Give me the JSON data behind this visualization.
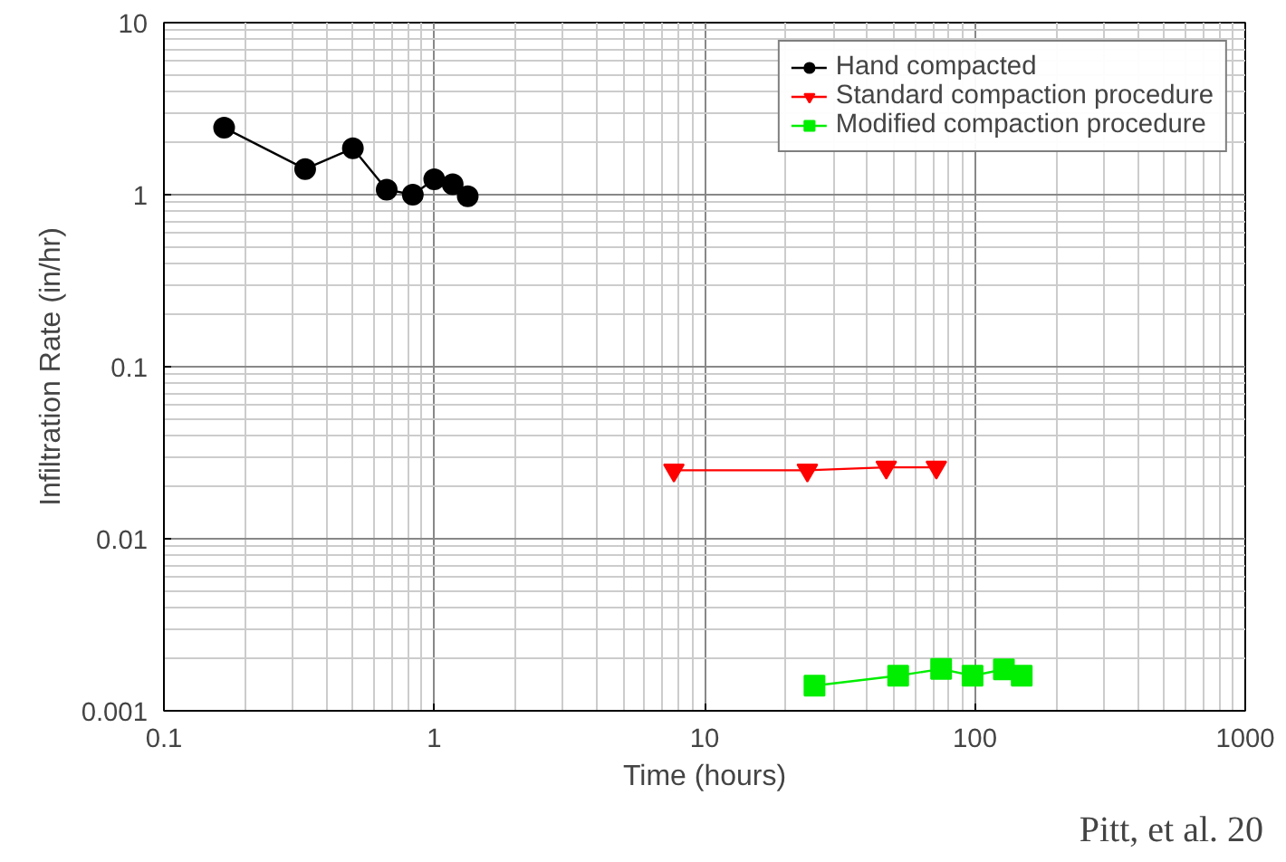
{
  "chart_data": {
    "type": "line",
    "xlabel": "Time (hours)",
    "ylabel": "Infiltration Rate (in/hr)",
    "log": "xy",
    "xlim": [
      0.1,
      1000
    ],
    "ylim": [
      0.001,
      10
    ],
    "xticks": [
      0.1,
      1,
      10,
      100,
      1000
    ],
    "yticks": [
      0.001,
      0.01,
      0.1,
      1,
      10
    ],
    "grid": true,
    "legend": "top right",
    "annotations": [
      "Pitt, et al. 20"
    ],
    "series": [
      {
        "name": "Hand compacted",
        "color": "#000000",
        "marker": "circle",
        "x": [
          0.167,
          0.333,
          0.5,
          0.667,
          0.833,
          1.0,
          1.17,
          1.33
        ],
        "values": [
          2.45,
          1.41,
          1.86,
          1.07,
          1.0,
          1.23,
          1.15,
          0.98
        ]
      },
      {
        "name": "Standard compaction procedure",
        "color": "#ff0000",
        "marker": "triangle",
        "x": [
          7.7,
          24,
          47,
          72
        ],
        "values": [
          0.025,
          0.025,
          0.026,
          0.026
        ]
      },
      {
        "name": "Modified compaction procedure",
        "color": "#00ee00",
        "marker": "square",
        "x": [
          25.5,
          52,
          75,
          98,
          128,
          149
        ],
        "values": [
          0.0014,
          0.0016,
          0.00175,
          0.0016,
          0.00174,
          0.0016
        ]
      }
    ]
  }
}
